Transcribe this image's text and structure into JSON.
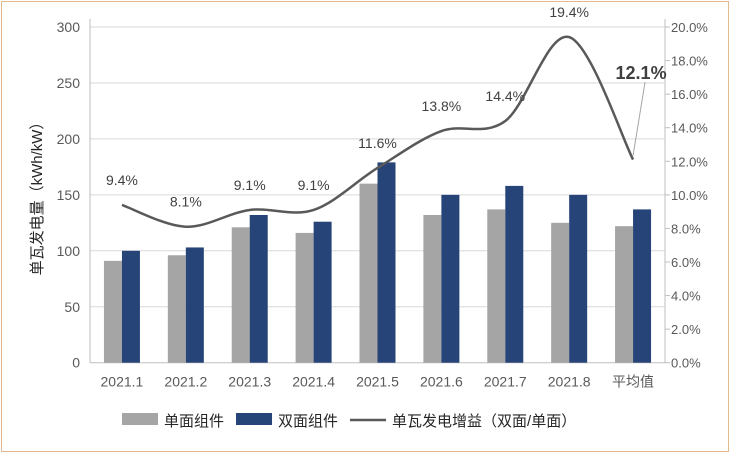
{
  "chart_data": {
    "type": "bar",
    "categories": [
      "2021.1",
      "2021.2",
      "2021.3",
      "2021.4",
      "2021.5",
      "2021.6",
      "2021.7",
      "2021.8",
      "平均值"
    ],
    "ylabel": "单瓦发电量（kWh/kW）",
    "ylim": [
      0,
      300
    ],
    "yticks": [
      "0",
      "50",
      "100",
      "150",
      "200",
      "250",
      "300"
    ],
    "y2lim": [
      0,
      20
    ],
    "y2ticks": [
      "0.0%",
      "2.0%",
      "4.0%",
      "6.0%",
      "8.0%",
      "10.0%",
      "12.0%",
      "14.0%",
      "16.0%",
      "18.0%",
      "20.0%"
    ],
    "grid": true,
    "legend_position": "bottom",
    "series": [
      {
        "name": "单面组件",
        "type": "bar",
        "axis": "left",
        "color": "#a5a5a5",
        "values": [
          91,
          96,
          121,
          116,
          160,
          132,
          137,
          125,
          122
        ]
      },
      {
        "name": "双面组件",
        "type": "bar",
        "axis": "left",
        "color": "#264478",
        "values": [
          100,
          103,
          132,
          126,
          179,
          150,
          158,
          150,
          137
        ]
      },
      {
        "name": "单瓦发电增益（双面/单面）",
        "type": "line",
        "axis": "right",
        "color": "#595959",
        "values": [
          9.4,
          8.1,
          9.1,
          9.1,
          11.6,
          13.8,
          14.4,
          19.4,
          12.1
        ],
        "labels": [
          "9.4%",
          "8.1%",
          "9.1%",
          "9.1%",
          "11.6%",
          "13.8%",
          "14.4%",
          "19.4%",
          "12.1%"
        ]
      }
    ]
  }
}
